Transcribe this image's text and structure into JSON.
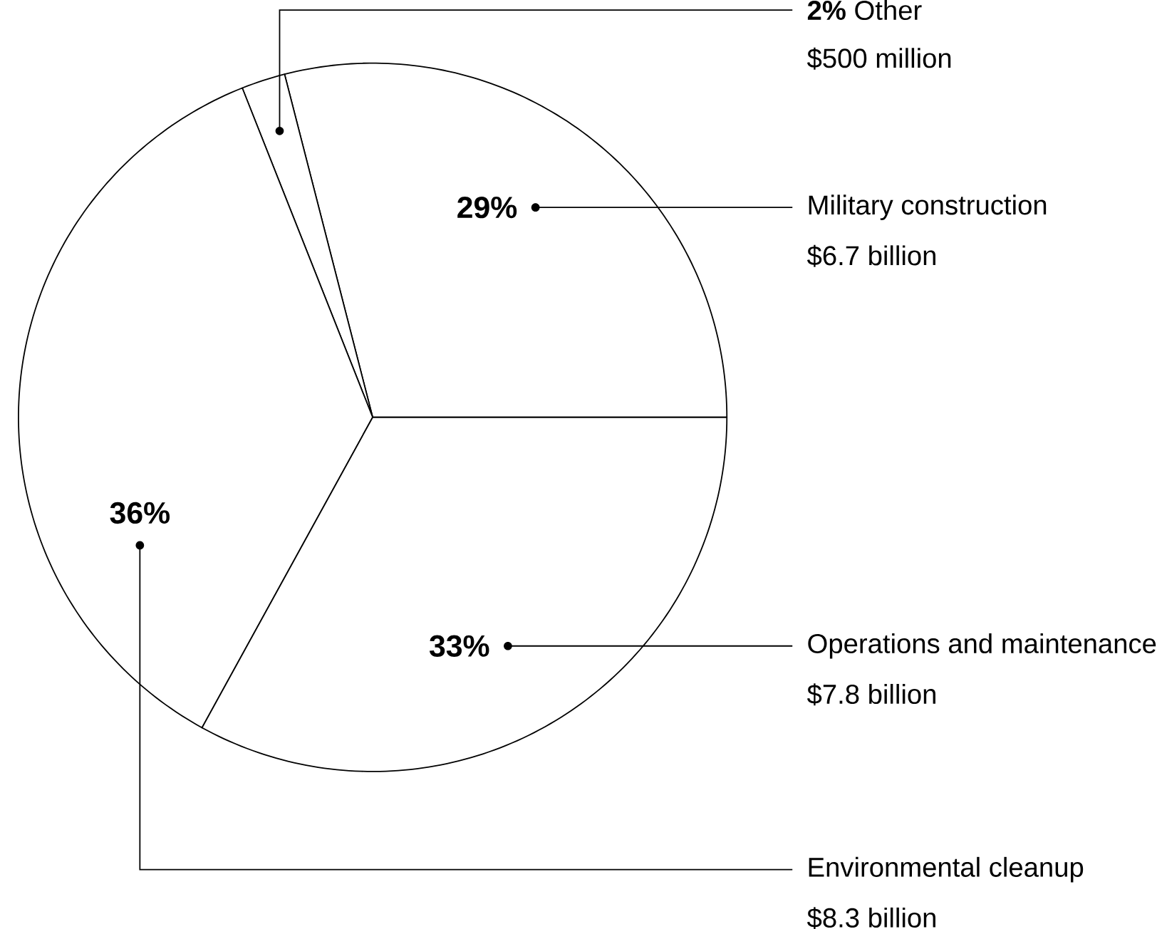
{
  "chart_data": {
    "type": "pie",
    "categories": [
      "Military construction",
      "Other",
      "Environmental cleanup",
      "Operations and maintenance"
    ],
    "values": [
      29,
      2,
      36,
      33
    ],
    "value_labels": [
      "29%",
      "2%",
      "36%",
      "33%"
    ],
    "colors": [
      "#ffffff",
      "#ffffff",
      "#ffffff",
      "#ffffff"
    ],
    "annotations": [
      "$6.7 billion",
      "$500 million",
      "$8.3 billion",
      "$7.8 billion"
    ]
  }
}
